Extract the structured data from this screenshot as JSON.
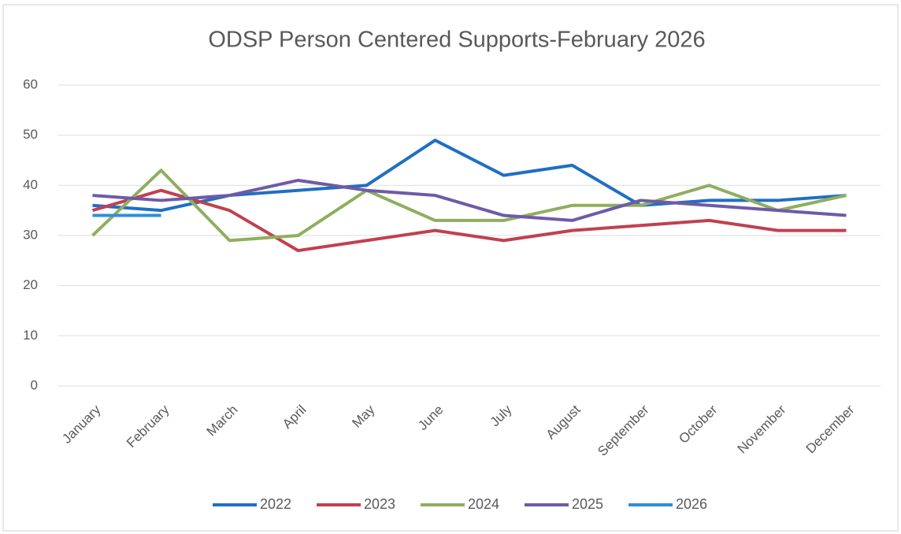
{
  "chart_data": {
    "type": "line",
    "title": "ODSP Person Centered Supports-February 2026",
    "categories": [
      "January",
      "February",
      "March",
      "April",
      "May",
      "June",
      "July",
      "August",
      "September",
      "October",
      "November",
      "December"
    ],
    "series": [
      {
        "name": "2022",
        "color": "#1f6fc4",
        "values": [
          36,
          35,
          38,
          39,
          40,
          49,
          42,
          44,
          36,
          37,
          37,
          38
        ]
      },
      {
        "name": "2023",
        "color": "#c0414f",
        "values": [
          35,
          39,
          35,
          27,
          29,
          31,
          29,
          31,
          32,
          33,
          31,
          31
        ]
      },
      {
        "name": "2024",
        "color": "#8fae5f",
        "values": [
          30,
          43,
          29,
          30,
          39,
          33,
          33,
          36,
          36,
          40,
          35,
          38
        ]
      },
      {
        "name": "2025",
        "color": "#6f5aa6",
        "values": [
          38,
          37,
          38,
          41,
          39,
          38,
          34,
          33,
          37,
          36,
          35,
          34
        ]
      },
      {
        "name": "2026",
        "color": "#2e8fd8",
        "values": [
          34,
          34,
          null,
          null,
          null,
          null,
          null,
          null,
          null,
          null,
          null,
          null
        ]
      }
    ],
    "ylim": [
      0,
      60
    ],
    "yticks": [
      0,
      10,
      20,
      30,
      40,
      50,
      60
    ],
    "grid": true,
    "legend": "bottom"
  }
}
